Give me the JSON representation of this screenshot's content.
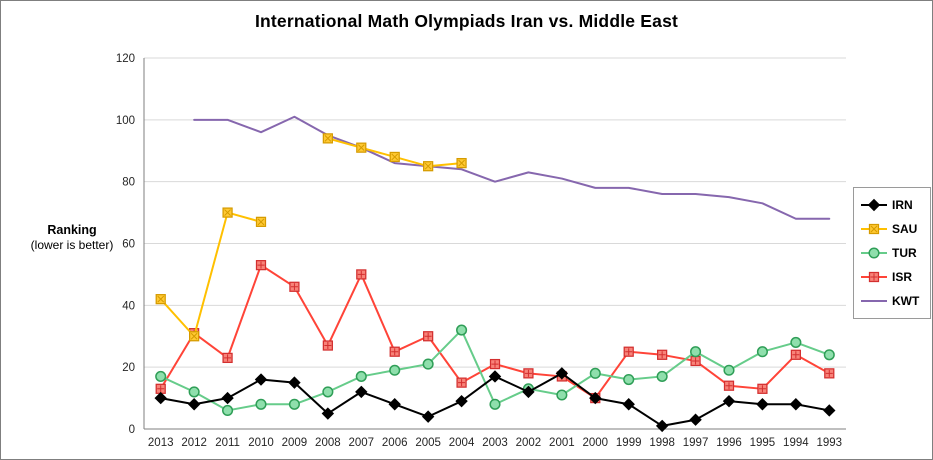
{
  "title": "International Math Olympiads Iran vs. Middle East",
  "y_axis_label": {
    "main": "Ranking",
    "sub": "(lower is better)"
  },
  "chart_data": {
    "type": "line",
    "title": "International Math Olympiads Iran vs. Middle East",
    "xlabel": "",
    "ylabel": "Ranking (lower is better)",
    "ylim": [
      0,
      120
    ],
    "yticks": [
      0,
      20,
      40,
      60,
      80,
      100,
      120
    ],
    "grid": true,
    "legend_position": "right",
    "categories": [
      "2013",
      "2012",
      "2011",
      "2010",
      "2009",
      "2008",
      "2007",
      "2006",
      "2005",
      "2004",
      "2003",
      "2002",
      "2001",
      "2000",
      "1999",
      "1998",
      "1997",
      "1996",
      "1995",
      "1994",
      "1993"
    ],
    "series": [
      {
        "name": "IRN",
        "color": "#000000",
        "marker": "diamond",
        "marker_fill": "#000000",
        "marker_stroke": "#000000",
        "values": [
          10,
          8,
          10,
          16,
          15,
          5,
          12,
          8,
          4,
          9,
          17,
          12,
          18,
          10,
          8,
          1,
          3,
          9,
          8,
          8,
          6
        ]
      },
      {
        "name": "SAU",
        "color": "#FFC000",
        "marker": "square-x",
        "marker_fill": "#FFC933",
        "marker_stroke": "#D59B00",
        "values": [
          42,
          30,
          70,
          67,
          null,
          94,
          91,
          88,
          85,
          86,
          null,
          null,
          null,
          null,
          null,
          null,
          null,
          null,
          null,
          null,
          null
        ]
      },
      {
        "name": "TUR",
        "color": "#66CC8A",
        "marker": "circle",
        "marker_fill": "#8FDFAC",
        "marker_stroke": "#2F9E57",
        "values": [
          17,
          12,
          6,
          8,
          8,
          12,
          17,
          19,
          21,
          32,
          8,
          13,
          11,
          18,
          16,
          17,
          25,
          19,
          25,
          28,
          24
        ]
      },
      {
        "name": "ISR",
        "color": "#FF4438",
        "marker": "square-plus",
        "marker_fill": "#F88379",
        "marker_stroke": "#D32F2F",
        "values": [
          13,
          31,
          23,
          53,
          46,
          27,
          50,
          25,
          30,
          15,
          21,
          18,
          17,
          10,
          25,
          24,
          22,
          14,
          13,
          24,
          18
        ]
      },
      {
        "name": "KWT",
        "color": "#8667AE",
        "marker": "none",
        "marker_fill": "#8667AE",
        "marker_stroke": "#8667AE",
        "values": [
          null,
          100,
          100,
          96,
          101,
          95,
          91,
          86,
          85,
          84,
          80,
          83,
          81,
          78,
          78,
          76,
          76,
          75,
          73,
          68,
          68
        ]
      }
    ]
  }
}
